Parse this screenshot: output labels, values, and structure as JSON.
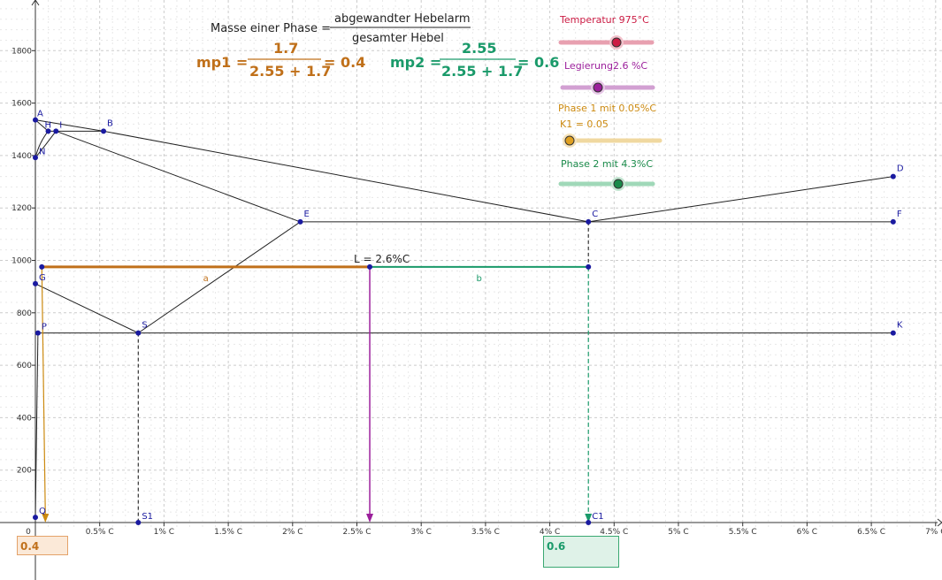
{
  "formula": {
    "prefix": "Masse einer Phase =",
    "num": "abgewandter  Hebelarm",
    "den": "gesamter  Hebel",
    "mp1": {
      "label": "mp1 =",
      "num": "1.7",
      "den": "2.55 + 1.7",
      "res": "= 0.4",
      "color": "#c0701a"
    },
    "mp2": {
      "label": "mp2 =",
      "num": "2.55",
      "den": "2.55 + 1.7",
      "res": "= 0.6",
      "color": "#1a9a6a"
    }
  },
  "sliders": [
    {
      "label": "Temperatur 975°C",
      "color": "#cc1c44",
      "track": "#e8a0b0",
      "value_fraction": 0.6
    },
    {
      "label": "Legierung2.6 %C",
      "color": "#9b1f9b",
      "track": "#d2a0d2",
      "value_fraction": 0.4
    },
    {
      "label": "Phase 1 mit  0.05%C",
      "sublabel": "K1 = 0.05",
      "color": "#cc8a10",
      "track": "#f0d8a0",
      "value_fraction": 0.0
    },
    {
      "label": "Phase 2 mit 4.3%C",
      "color": "#1a8a4a",
      "track": "#a0d8b8",
      "value_fraction": 0.6
    }
  ],
  "chart_data": {
    "type": "diagram",
    "x_ticks": [
      "0",
      "0.5% C",
      "1% C",
      "1.5% C",
      "2% C",
      "2.5% C",
      "3% C",
      "3.5% C",
      "4% C",
      "4.5% C",
      "5% C",
      "5.5% C",
      "6% C",
      "6.5% C",
      "7% C"
    ],
    "x_tick_values": [
      0,
      0.5,
      1,
      1.5,
      2,
      2.5,
      3,
      3.5,
      4,
      4.5,
      5,
      5.5,
      6,
      6.5,
      7
    ],
    "y_ticks": [
      "200",
      "400",
      "600",
      "800",
      "1000",
      "1200",
      "1400",
      "1600",
      "1800"
    ],
    "y_tick_values": [
      200,
      400,
      600,
      800,
      1000,
      1200,
      1400,
      1600,
      1800
    ],
    "xlim": [
      0,
      7
    ],
    "ylim": [
      0,
      1900
    ],
    "grid": true,
    "points": [
      {
        "name": "A",
        "x": 0,
        "y": 1536
      },
      {
        "name": "H",
        "x": 0.1,
        "y": 1493
      },
      {
        "name": "I",
        "x": 0.16,
        "y": 1493
      },
      {
        "name": "B",
        "x": 0.53,
        "y": 1493
      },
      {
        "name": "N",
        "x": 0,
        "y": 1392
      },
      {
        "name": "E",
        "x": 2.06,
        "y": 1147
      },
      {
        "name": "C",
        "x": 4.3,
        "y": 1147
      },
      {
        "name": "F",
        "x": 6.67,
        "y": 1147
      },
      {
        "name": "D",
        "x": 6.67,
        "y": 1320
      },
      {
        "name": "G",
        "x": 0,
        "y": 911
      },
      {
        "name": "P",
        "x": 0.02,
        "y": 723
      },
      {
        "name": "S",
        "x": 0.8,
        "y": 723
      },
      {
        "name": "K",
        "x": 6.67,
        "y": 723
      },
      {
        "name": "Q",
        "x": 0,
        "y": 20
      },
      {
        "name": "S1",
        "x": 0.8,
        "y": 0
      },
      {
        "name": "C1",
        "x": 4.3,
        "y": 0
      }
    ],
    "lever": {
      "temperature": 975,
      "alloy": 2.6,
      "phase1": 0.05,
      "phase2": 4.3,
      "label_L": "L = 2.6%C",
      "label_a": "a",
      "label_b": "b"
    },
    "result_boxes": {
      "left": "0.4",
      "right": "0.6"
    }
  }
}
